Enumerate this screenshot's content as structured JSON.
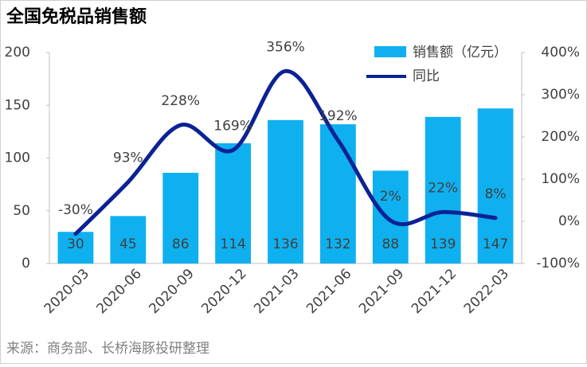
{
  "chart_data": {
    "type": "bar-line",
    "title": "全国免税品销售额",
    "source": "来源：商务部、长桥海豚投研整理",
    "categories": [
      "2020-03",
      "2020-06",
      "2020-09",
      "2020-12",
      "2021-03",
      "2021-06",
      "2021-09",
      "2021-12",
      "2022-03"
    ],
    "series": [
      {
        "name": "销售额（亿元）",
        "type": "bar",
        "color": "#0fb0ef",
        "values": [
          30,
          45,
          86,
          114,
          136,
          132,
          88,
          139,
          147
        ]
      },
      {
        "name": "同比",
        "type": "line",
        "axis": "y2",
        "color": "#0b2295",
        "values": [
          -30,
          93,
          228,
          169,
          356,
          192,
          2,
          22,
          8
        ],
        "value_labels": [
          "-30%",
          "93%",
          "228%",
          "169%",
          "356%",
          "192%",
          "2%",
          "22%",
          "8%"
        ]
      }
    ],
    "ylim": [
      0,
      200
    ],
    "yticks": [
      0,
      50,
      100,
      150,
      200
    ],
    "y2lim": [
      -100,
      400
    ],
    "y2ticks": [
      {
        "value": -100,
        "label": "-100%"
      },
      {
        "value": 0,
        "label": "0%"
      },
      {
        "value": 100,
        "label": "100%"
      },
      {
        "value": 200,
        "label": "200%"
      },
      {
        "value": 300,
        "label": "300%"
      },
      {
        "value": 400,
        "label": "400%"
      }
    ]
  }
}
